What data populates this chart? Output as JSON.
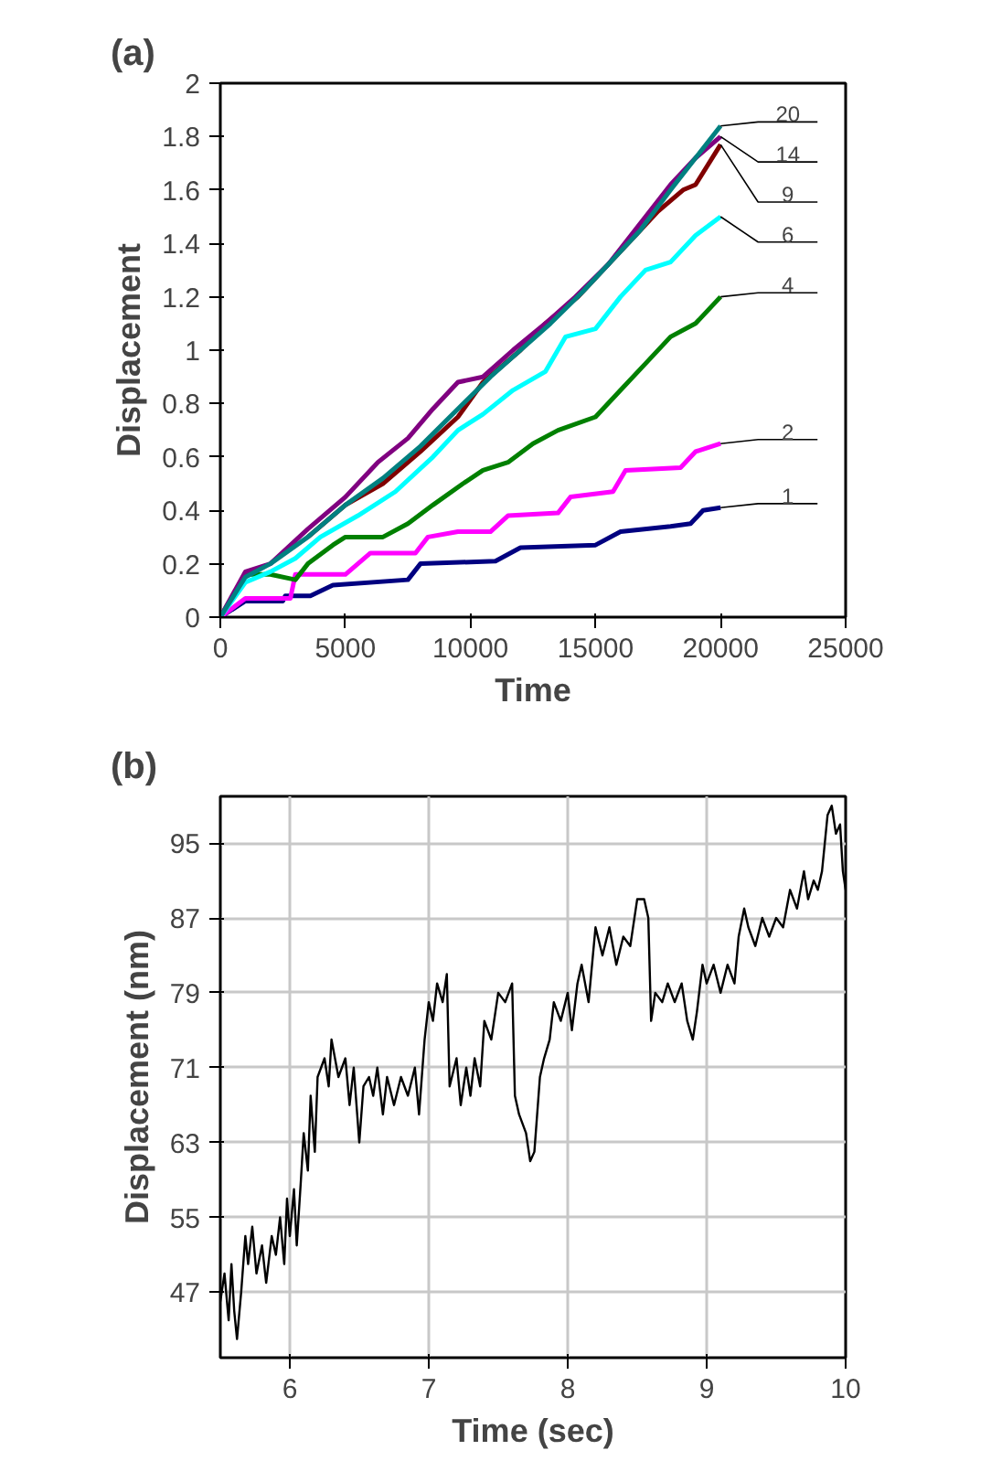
{
  "chart_data": [
    {
      "type": "line",
      "annotations": [
        "(a)"
      ],
      "xlabel": "Time",
      "ylabel": "Displacement",
      "xlim": [
        0,
        25000
      ],
      "xticks": [
        0,
        5000,
        10000,
        15000,
        20000,
        25000
      ],
      "ylim": [
        0,
        2
      ],
      "yticks": [
        0,
        {
          "value": 0.2,
          "label": "0.2"
        },
        {
          "value": 0.4,
          "label": "0.4"
        },
        {
          "value": 0.6,
          "label": "0.6"
        },
        {
          "value": 0.8,
          "label": "0.8"
        },
        1,
        {
          "value": 1.2,
          "label": "1.2"
        },
        {
          "value": 1.4,
          "label": "1.4"
        },
        {
          "value": 1.6,
          "label": "1.6"
        },
        {
          "value": 1.8,
          "label": "1.8"
        },
        2
      ],
      "grid": false,
      "series": [
        {
          "name": "1",
          "color": "#000080",
          "x": [
            0,
            1000,
            2500,
            2600,
            3600,
            4500,
            7500,
            8000,
            11000,
            12000,
            15000,
            16000,
            18000,
            18800,
            19300,
            20000
          ],
          "values": [
            0,
            0.06,
            0.06,
            0.08,
            0.08,
            0.12,
            0.14,
            0.2,
            0.21,
            0.26,
            0.27,
            0.32,
            0.34,
            0.35,
            0.4,
            0.41
          ]
        },
        {
          "name": "2",
          "color": "#ff00ff",
          "x": [
            0,
            1000,
            2800,
            3000,
            5000,
            5500,
            6000,
            7800,
            8300,
            9500,
            10800,
            11500,
            13500,
            14000,
            15700,
            16200,
            18400,
            19000,
            20000
          ],
          "values": [
            0,
            0.07,
            0.07,
            0.16,
            0.16,
            0.2,
            0.24,
            0.24,
            0.3,
            0.32,
            0.32,
            0.38,
            0.39,
            0.45,
            0.47,
            0.55,
            0.56,
            0.62,
            0.65
          ]
        },
        {
          "name": "4",
          "color": "#008000",
          "x": [
            0,
            1000,
            2000,
            3000,
            3500,
            4500,
            5000,
            6500,
            7500,
            8500,
            9700,
            10500,
            11500,
            12500,
            13500,
            15000,
            16000,
            17000,
            18000,
            19000,
            20000
          ],
          "values": [
            0,
            0.16,
            0.16,
            0.14,
            0.2,
            0.27,
            0.3,
            0.3,
            0.35,
            0.42,
            0.5,
            0.55,
            0.58,
            0.65,
            0.7,
            0.75,
            0.85,
            0.95,
            1.05,
            1.1,
            1.2
          ]
        },
        {
          "name": "6",
          "color": "#00ffff",
          "x": [
            0,
            1000,
            2000,
            3000,
            4000,
            5500,
            7000,
            8500,
            9500,
            10500,
            11700,
            13000,
            13800,
            15000,
            16000,
            17000,
            18000,
            19000,
            20000
          ],
          "values": [
            0,
            0.13,
            0.17,
            0.22,
            0.3,
            0.38,
            0.47,
            0.6,
            0.7,
            0.76,
            0.85,
            0.92,
            1.05,
            1.08,
            1.2,
            1.3,
            1.33,
            1.43,
            1.5
          ]
        },
        {
          "name": "9",
          "color": "#800000",
          "x": [
            3500,
            5000,
            6500,
            8000,
            9500,
            10500,
            12000,
            13000,
            14300,
            15300,
            16500,
            17500,
            18500,
            19000,
            20000
          ],
          "values": [
            0.3,
            0.42,
            0.5,
            0.62,
            0.75,
            0.88,
            1.0,
            1.1,
            1.2,
            1.3,
            1.42,
            1.52,
            1.6,
            1.62,
            1.77
          ]
        },
        {
          "name": "14",
          "color": "#800080",
          "x": [
            0,
            1000,
            2000,
            3500,
            5000,
            6300,
            7500,
            8500,
            9500,
            10500,
            11700,
            13000,
            14200,
            15500,
            17000,
            18000,
            19000,
            20000
          ],
          "values": [
            0,
            0.17,
            0.2,
            0.33,
            0.45,
            0.58,
            0.67,
            0.78,
            0.88,
            0.9,
            1.0,
            1.1,
            1.2,
            1.32,
            1.5,
            1.62,
            1.72,
            1.8
          ]
        },
        {
          "name": "20",
          "color": "#008080",
          "x": [
            0,
            1000,
            2000,
            3500,
            5000,
            6500,
            8000,
            9500,
            10800,
            12000,
            13200,
            14500,
            15800,
            16800,
            18000,
            19000,
            20000
          ],
          "values": [
            0,
            0.15,
            0.2,
            0.3,
            0.42,
            0.52,
            0.64,
            0.78,
            0.9,
            1.0,
            1.1,
            1.22,
            1.35,
            1.45,
            1.6,
            1.72,
            1.84
          ]
        }
      ]
    },
    {
      "type": "line",
      "annotations": [
        "(b)"
      ],
      "xlabel": "Time (sec)",
      "ylabel": "Displacement (nm)",
      "xlim": [
        5.5,
        10
      ],
      "xticks": [
        6,
        7,
        8,
        9,
        10
      ],
      "ylim": [
        40,
        100
      ],
      "yticks": [
        47,
        55,
        63,
        71,
        79,
        87,
        95
      ],
      "grid": true,
      "series": [
        {
          "color": "#000000",
          "x": [
            5.5,
            5.53,
            5.56,
            5.58,
            5.6,
            5.62,
            5.65,
            5.68,
            5.7,
            5.73,
            5.76,
            5.8,
            5.83,
            5.87,
            5.9,
            5.93,
            5.96,
            5.98,
            6.0,
            6.03,
            6.05,
            6.08,
            6.1,
            6.13,
            6.15,
            6.18,
            6.2,
            6.25,
            6.28,
            6.3,
            6.35,
            6.4,
            6.43,
            6.46,
            6.5,
            6.53,
            6.57,
            6.6,
            6.63,
            6.67,
            6.7,
            6.75,
            6.8,
            6.85,
            6.9,
            6.93,
            6.97,
            7.0,
            7.03,
            7.06,
            7.1,
            7.13,
            7.15,
            7.2,
            7.23,
            7.27,
            7.3,
            7.33,
            7.37,
            7.4,
            7.45,
            7.5,
            7.55,
            7.6,
            7.62,
            7.65,
            7.7,
            7.73,
            7.76,
            7.8,
            7.83,
            7.87,
            7.9,
            7.95,
            8.0,
            8.03,
            8.07,
            8.1,
            8.15,
            8.2,
            8.25,
            8.3,
            8.35,
            8.4,
            8.45,
            8.5,
            8.55,
            8.58,
            8.6,
            8.63,
            8.68,
            8.72,
            8.77,
            8.82,
            8.86,
            8.9,
            8.93,
            8.97,
            9.0,
            9.05,
            9.1,
            9.15,
            9.2,
            9.23,
            9.27,
            9.3,
            9.35,
            9.4,
            9.45,
            9.5,
            9.55,
            9.6,
            9.65,
            9.7,
            9.73,
            9.77,
            9.8,
            9.83,
            9.87,
            9.9,
            9.93,
            9.96,
            9.98,
            10.0
          ],
          "values": [
            46,
            49,
            44,
            50,
            45,
            42,
            47,
            53,
            50,
            54,
            49,
            52,
            48,
            53,
            51,
            55,
            50,
            57,
            53,
            58,
            52,
            59,
            64,
            60,
            68,
            62,
            70,
            72,
            69,
            74,
            70,
            72,
            67,
            71,
            63,
            69,
            70,
            68,
            71,
            66,
            70,
            67,
            70,
            68,
            71,
            66,
            74,
            78,
            76,
            80,
            78,
            81,
            69,
            72,
            67,
            71,
            68,
            72,
            69,
            76,
            74,
            79,
            78,
            80,
            68,
            66,
            64,
            61,
            62,
            70,
            72,
            74,
            78,
            76,
            79,
            75,
            80,
            82,
            78,
            86,
            83,
            86,
            82,
            85,
            84,
            89,
            89,
            87,
            76,
            79,
            78,
            80,
            78,
            80,
            76,
            74,
            77,
            82,
            80,
            82,
            79,
            82,
            80,
            85,
            88,
            86,
            84,
            87,
            85,
            87,
            86,
            90,
            88,
            92,
            89,
            91,
            90,
            92,
            98,
            99,
            96,
            97,
            92,
            90
          ]
        }
      ]
    }
  ]
}
